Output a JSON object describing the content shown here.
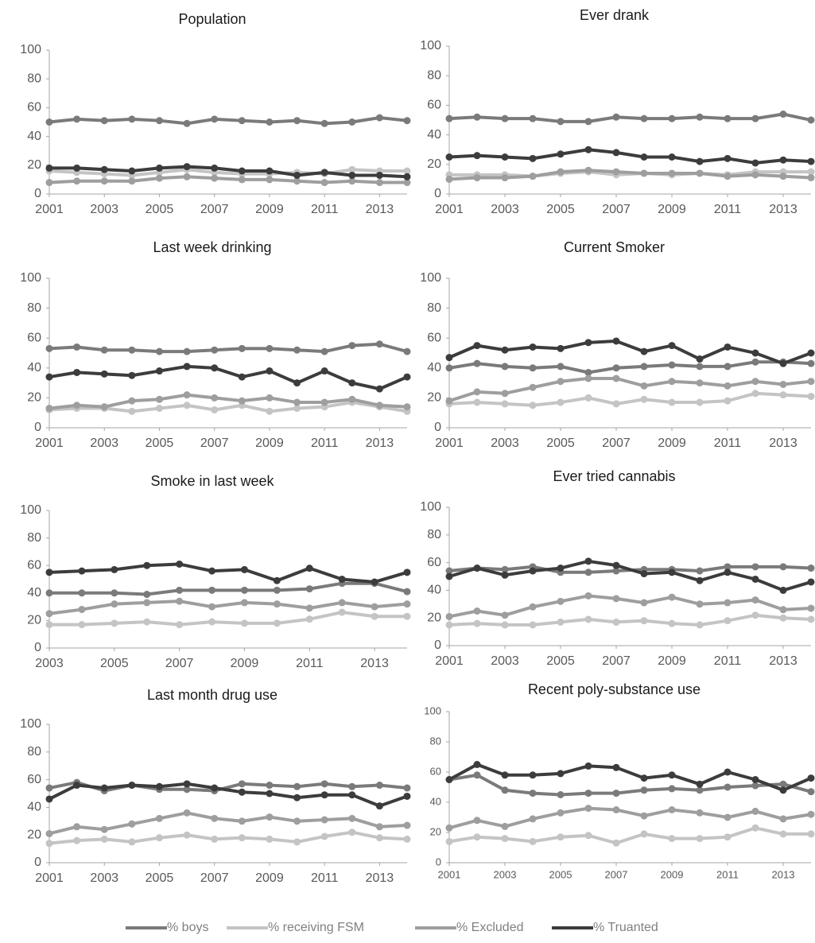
{
  "chart_data": [
    {
      "type": "line",
      "title": "Population",
      "x": [
        2001,
        2002,
        2003,
        2004,
        2005,
        2006,
        2007,
        2008,
        2009,
        2010,
        2011,
        2012,
        2013,
        2014
      ],
      "xlim": [
        2001,
        2014
      ],
      "xticks": [
        2001,
        2003,
        2005,
        2007,
        2009,
        2011,
        2013
      ],
      "ylim": [
        0,
        100
      ],
      "yticks": [
        0,
        20,
        40,
        60,
        80,
        100
      ],
      "grid": false,
      "series": [
        {
          "name": "% boys",
          "color": "#7a7a7a",
          "values": [
            50,
            52,
            51,
            52,
            51,
            49,
            52,
            51,
            50,
            51,
            49,
            50,
            53,
            51
          ]
        },
        {
          "name": "% receiving FSM",
          "color": "#c4c4c4",
          "values": [
            16,
            15,
            14,
            13,
            15,
            17,
            15,
            14,
            14,
            15,
            14,
            17,
            16,
            16
          ]
        },
        {
          "name": "% Excluded",
          "color": "#9e9e9e",
          "values": [
            8,
            9,
            9,
            9,
            11,
            12,
            11,
            10,
            10,
            9,
            8,
            9,
            8,
            8
          ]
        },
        {
          "name": "% Truanted",
          "color": "#3c3c3c",
          "values": [
            18,
            18,
            17,
            16,
            18,
            19,
            18,
            16,
            16,
            13,
            15,
            13,
            13,
            12
          ]
        }
      ]
    },
    {
      "type": "line",
      "title": "Ever drank",
      "x": [
        2001,
        2002,
        2003,
        2004,
        2005,
        2006,
        2007,
        2008,
        2009,
        2010,
        2011,
        2012,
        2013,
        2014
      ],
      "xlim": [
        2001,
        2014
      ],
      "xticks": [
        2001,
        2003,
        2005,
        2007,
        2009,
        2011,
        2013
      ],
      "ylim": [
        0,
        100
      ],
      "yticks": [
        0,
        20,
        40,
        60,
        80,
        100
      ],
      "grid": false,
      "series": [
        {
          "name": "% boys",
          "color": "#7a7a7a",
          "values": [
            51,
            52,
            51,
            51,
            49,
            49,
            52,
            51,
            51,
            52,
            51,
            51,
            54,
            50
          ]
        },
        {
          "name": "% receiving FSM",
          "color": "#c4c4c4",
          "values": [
            13,
            13,
            13,
            12,
            14,
            15,
            13,
            14,
            13,
            14,
            13,
            15,
            15,
            15
          ]
        },
        {
          "name": "% Excluded",
          "color": "#9e9e9e",
          "values": [
            10,
            11,
            11,
            12,
            15,
            16,
            15,
            14,
            14,
            14,
            12,
            13,
            12,
            11
          ]
        },
        {
          "name": "% Truanted",
          "color": "#3c3c3c",
          "values": [
            25,
            26,
            25,
            24,
            27,
            30,
            28,
            25,
            25,
            22,
            24,
            21,
            23,
            22
          ]
        }
      ]
    },
    {
      "type": "line",
      "title": "Last week drinking",
      "x": [
        2001,
        2002,
        2003,
        2004,
        2005,
        2006,
        2007,
        2008,
        2009,
        2010,
        2011,
        2012,
        2013,
        2014
      ],
      "xlim": [
        2001,
        2014
      ],
      "xticks": [
        2001,
        2003,
        2005,
        2007,
        2009,
        2011,
        2013
      ],
      "ylim": [
        0,
        100
      ],
      "yticks": [
        0,
        20,
        40,
        60,
        80,
        100
      ],
      "grid": false,
      "series": [
        {
          "name": "% boys",
          "color": "#7a7a7a",
          "values": [
            53,
            54,
            52,
            52,
            51,
            51,
            52,
            53,
            53,
            52,
            51,
            55,
            56,
            51
          ]
        },
        {
          "name": "% receiving FSM",
          "color": "#c4c4c4",
          "values": [
            12,
            13,
            13,
            11,
            13,
            15,
            12,
            15,
            11,
            13,
            14,
            17,
            14,
            11
          ]
        },
        {
          "name": "% Excluded",
          "color": "#9e9e9e",
          "values": [
            13,
            15,
            14,
            18,
            19,
            22,
            20,
            18,
            20,
            17,
            17,
            19,
            15,
            14
          ]
        },
        {
          "name": "% Truanted",
          "color": "#3c3c3c",
          "values": [
            34,
            37,
            36,
            35,
            38,
            41,
            40,
            34,
            38,
            30,
            38,
            30,
            26,
            34
          ]
        }
      ]
    },
    {
      "type": "line",
      "title": "Current Smoker",
      "x": [
        2001,
        2002,
        2003,
        2004,
        2005,
        2006,
        2007,
        2008,
        2009,
        2010,
        2011,
        2012,
        2013,
        2014
      ],
      "xlim": [
        2001,
        2014
      ],
      "xticks": [
        2001,
        2003,
        2005,
        2007,
        2009,
        2011,
        2013
      ],
      "ylim": [
        0,
        100
      ],
      "yticks": [
        0,
        20,
        40,
        60,
        80,
        100
      ],
      "grid": false,
      "series": [
        {
          "name": "% boys",
          "color": "#7a7a7a",
          "values": [
            40,
            43,
            41,
            40,
            41,
            37,
            40,
            41,
            42,
            41,
            41,
            44,
            44,
            43
          ]
        },
        {
          "name": "% receiving FSM",
          "color": "#c4c4c4",
          "values": [
            16,
            17,
            16,
            15,
            17,
            20,
            16,
            19,
            17,
            17,
            18,
            23,
            22,
            21
          ]
        },
        {
          "name": "% Excluded",
          "color": "#9e9e9e",
          "values": [
            18,
            24,
            23,
            27,
            31,
            33,
            33,
            28,
            31,
            30,
            28,
            31,
            29,
            31
          ]
        },
        {
          "name": "% Truanted",
          "color": "#3c3c3c",
          "values": [
            47,
            55,
            52,
            54,
            53,
            57,
            58,
            51,
            55,
            46,
            54,
            50,
            43,
            50
          ]
        }
      ]
    },
    {
      "type": "line",
      "title": "Smoke in last week",
      "x": [
        2003,
        2004,
        2005,
        2006,
        2007,
        2008,
        2009,
        2010,
        2011,
        2012,
        2013,
        2014
      ],
      "xlim": [
        2003,
        2014
      ],
      "xticks": [
        2003,
        2005,
        2007,
        2009,
        2011,
        2013
      ],
      "ylim": [
        0,
        100
      ],
      "yticks": [
        0,
        20,
        40,
        60,
        80,
        100
      ],
      "grid": false,
      "series": [
        {
          "name": "% boys",
          "color": "#7a7a7a",
          "values": [
            40,
            40,
            40,
            39,
            42,
            42,
            42,
            42,
            43,
            47,
            47,
            41
          ]
        },
        {
          "name": "% receiving FSM",
          "color": "#c4c4c4",
          "values": [
            17,
            17,
            18,
            19,
            17,
            19,
            18,
            18,
            21,
            26,
            23,
            23
          ]
        },
        {
          "name": "% Excluded",
          "color": "#9e9e9e",
          "values": [
            25,
            28,
            32,
            33,
            34,
            30,
            33,
            32,
            29,
            33,
            30,
            32
          ]
        },
        {
          "name": "% Truanted",
          "color": "#3c3c3c",
          "values": [
            55,
            56,
            57,
            60,
            61,
            56,
            57,
            49,
            58,
            50,
            48,
            55
          ]
        }
      ]
    },
    {
      "type": "line",
      "title": "Ever tried cannabis",
      "x": [
        2001,
        2002,
        2003,
        2004,
        2005,
        2006,
        2007,
        2008,
        2009,
        2010,
        2011,
        2012,
        2013,
        2014
      ],
      "xlim": [
        2001,
        2014
      ],
      "xticks": [
        2001,
        2003,
        2005,
        2007,
        2009,
        2011,
        2013
      ],
      "ylim": [
        0,
        100
      ],
      "yticks": [
        0,
        20,
        40,
        60,
        80,
        100
      ],
      "grid": false,
      "series": [
        {
          "name": "% boys",
          "color": "#7a7a7a",
          "values": [
            54,
            56,
            55,
            57,
            53,
            53,
            54,
            55,
            55,
            54,
            57,
            57,
            57,
            56
          ]
        },
        {
          "name": "% receiving FSM",
          "color": "#c4c4c4",
          "values": [
            15,
            16,
            15,
            15,
            17,
            19,
            17,
            18,
            16,
            15,
            18,
            22,
            20,
            19
          ]
        },
        {
          "name": "% Excluded",
          "color": "#9e9e9e",
          "values": [
            21,
            25,
            22,
            28,
            32,
            36,
            34,
            31,
            35,
            30,
            31,
            33,
            26,
            27
          ]
        },
        {
          "name": "% Truanted",
          "color": "#3c3c3c",
          "values": [
            50,
            56,
            51,
            54,
            56,
            61,
            58,
            52,
            53,
            47,
            53,
            48,
            40,
            46
          ]
        }
      ]
    },
    {
      "type": "line",
      "title": "Last month drug use",
      "x": [
        2001,
        2002,
        2003,
        2004,
        2005,
        2006,
        2007,
        2008,
        2009,
        2010,
        2011,
        2012,
        2013,
        2014
      ],
      "xlim": [
        2001,
        2014
      ],
      "xticks": [
        2001,
        2003,
        2005,
        2007,
        2009,
        2011,
        2013
      ],
      "ylim": [
        0,
        100
      ],
      "yticks": [
        0,
        20,
        40,
        60,
        80,
        100
      ],
      "grid": false,
      "series": [
        {
          "name": "% boys",
          "color": "#7a7a7a",
          "values": [
            54,
            58,
            52,
            56,
            53,
            53,
            52,
            57,
            56,
            55,
            57,
            55,
            56,
            54
          ]
        },
        {
          "name": "% receiving FSM",
          "color": "#c4c4c4",
          "values": [
            14,
            16,
            17,
            15,
            18,
            20,
            17,
            18,
            17,
            15,
            19,
            22,
            18,
            17
          ]
        },
        {
          "name": "% Excluded",
          "color": "#9e9e9e",
          "values": [
            21,
            26,
            24,
            28,
            32,
            36,
            32,
            30,
            33,
            30,
            31,
            32,
            26,
            27
          ]
        },
        {
          "name": "% Truanted",
          "color": "#3c3c3c",
          "values": [
            46,
            56,
            54,
            56,
            55,
            57,
            54,
            51,
            50,
            47,
            49,
            49,
            41,
            48
          ]
        }
      ]
    },
    {
      "type": "line",
      "title": "Recent poly-substance use",
      "x": [
        2001,
        2002,
        2003,
        2004,
        2005,
        2006,
        2007,
        2008,
        2009,
        2010,
        2011,
        2012,
        2013,
        2014
      ],
      "xlim": [
        2001,
        2014
      ],
      "xticks": [
        2001,
        2003,
        2005,
        2007,
        2009,
        2011,
        2013
      ],
      "ylim": [
        0,
        100
      ],
      "yticks": [
        0,
        20,
        40,
        60,
        80,
        100
      ],
      "grid": false,
      "series": [
        {
          "name": "% boys",
          "color": "#7a7a7a",
          "values": [
            55,
            58,
            48,
            46,
            45,
            46,
            46,
            48,
            49,
            48,
            50,
            51,
            52,
            47
          ]
        },
        {
          "name": "% receiving FSM",
          "color": "#c4c4c4",
          "values": [
            14,
            17,
            16,
            14,
            17,
            18,
            13,
            19,
            16,
            16,
            17,
            23,
            19,
            19
          ]
        },
        {
          "name": "% Excluded",
          "color": "#9e9e9e",
          "values": [
            23,
            28,
            24,
            29,
            33,
            36,
            35,
            31,
            35,
            33,
            30,
            34,
            29,
            32
          ]
        },
        {
          "name": "% Truanted",
          "color": "#3c3c3c",
          "values": [
            55,
            65,
            58,
            58,
            59,
            64,
            63,
            56,
            58,
            52,
            60,
            55,
            48,
            56
          ]
        }
      ]
    }
  ]
}
